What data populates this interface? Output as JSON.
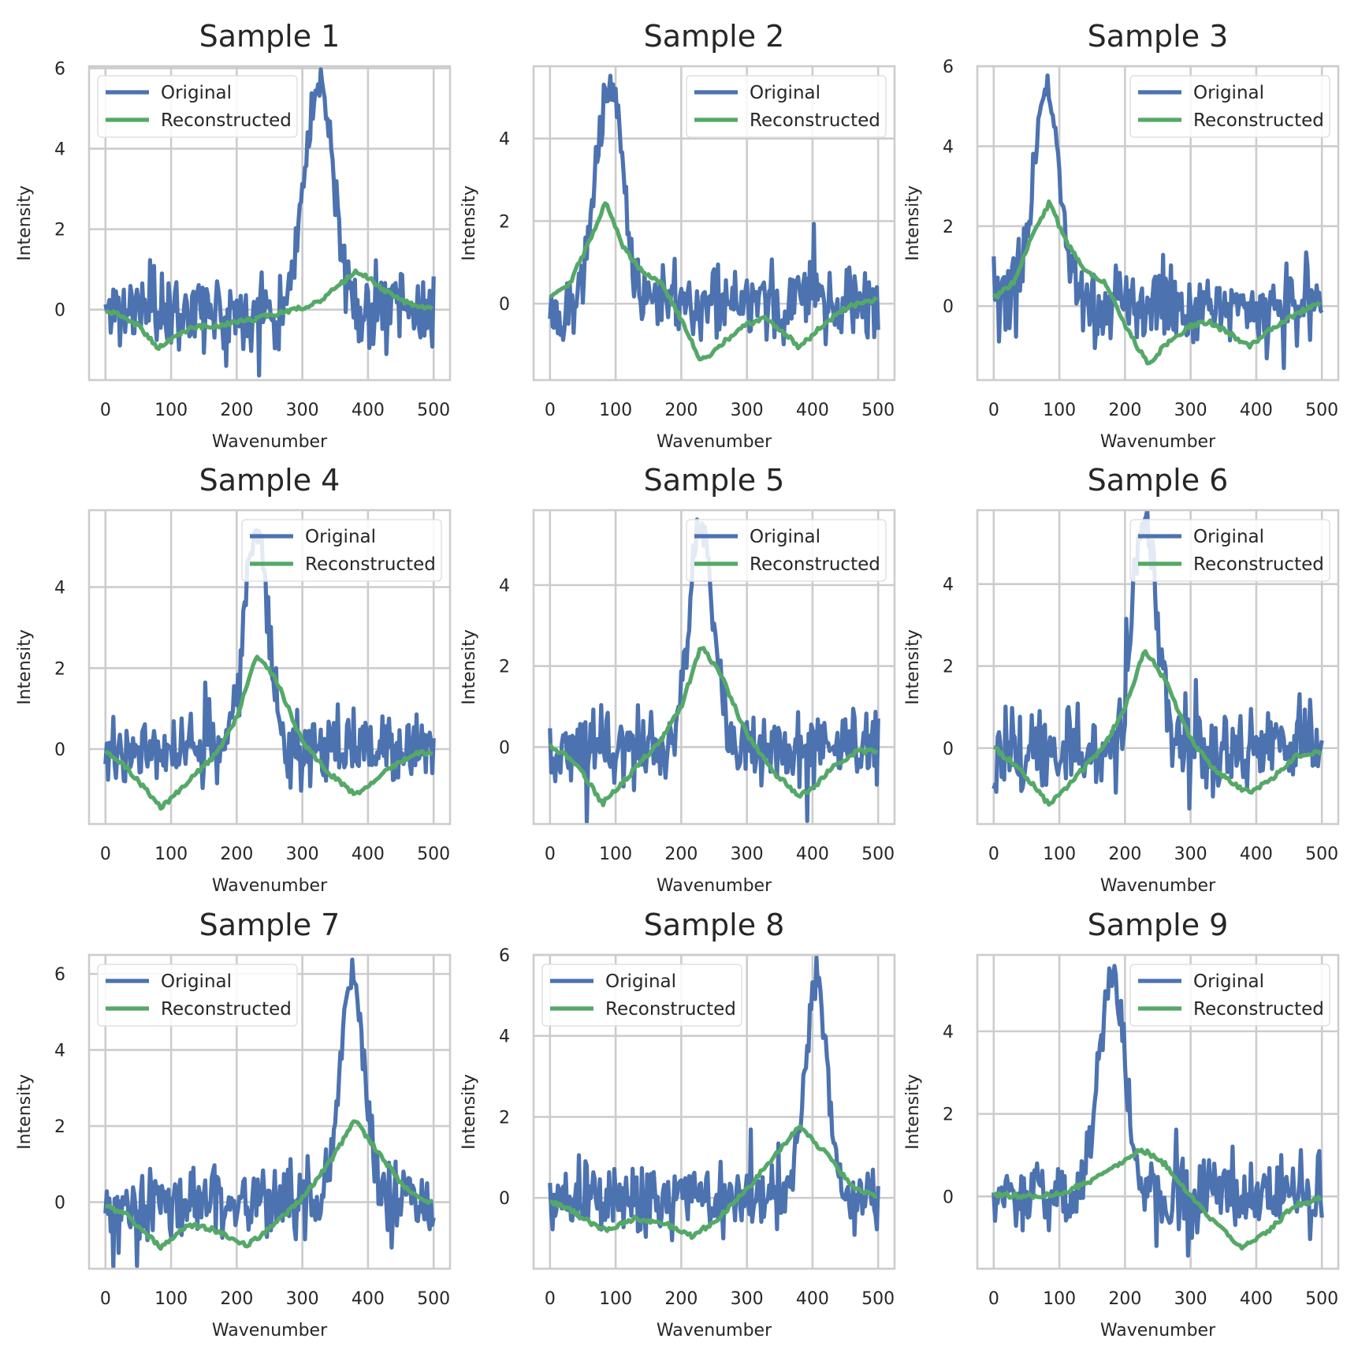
{
  "figure": {
    "rows": 3,
    "cols": 3
  },
  "colors": {
    "original": "#4c72b0",
    "reconstructed": "#55a868",
    "grid": "#cccccc",
    "frame": "#cccccc"
  },
  "chart_data": [
    {
      "type": "line",
      "title": "Sample 1",
      "xlabel": "Wavenumber",
      "ylabel": "Intensity",
      "xlim": [
        -25,
        525
      ],
      "ylim": [
        -1.75,
        6.05
      ],
      "xticks": [
        0,
        100,
        200,
        300,
        400,
        500
      ],
      "yticks": [
        0,
        2,
        4,
        6
      ],
      "legend": "upper-left",
      "series": [
        {
          "name": "Original",
          "peak_center": 325,
          "peak_height": 5.6,
          "peak_width": 22,
          "noise": 0.55,
          "seed": 11
        },
        {
          "name": "Reconstructed",
          "points": [
            [
              0,
              -0.05
            ],
            [
              20,
              -0.1
            ],
            [
              50,
              -0.4
            ],
            [
              80,
              -0.95
            ],
            [
              100,
              -0.75
            ],
            [
              130,
              -0.45
            ],
            [
              170,
              -0.4
            ],
            [
              210,
              -0.3
            ],
            [
              260,
              -0.1
            ],
            [
              300,
              0.05
            ],
            [
              330,
              0.25
            ],
            [
              360,
              0.65
            ],
            [
              380,
              0.95
            ],
            [
              400,
              0.8
            ],
            [
              440,
              0.3
            ],
            [
              470,
              0.1
            ],
            [
              500,
              0.0
            ]
          ]
        }
      ]
    },
    {
      "type": "line",
      "title": "Sample 2",
      "xlabel": "Wavenumber",
      "ylabel": "Intensity",
      "xlim": [
        -25,
        525
      ],
      "ylim": [
        -1.85,
        5.75
      ],
      "xticks": [
        0,
        100,
        200,
        300,
        400,
        500
      ],
      "yticks": [
        0,
        2,
        4
      ],
      "legend": "upper-right",
      "series": [
        {
          "name": "Original",
          "peak_center": 90,
          "peak_height": 5.3,
          "peak_width": 20,
          "noise": 0.55,
          "seed": 22
        },
        {
          "name": "Reconstructed",
          "points": [
            [
              0,
              0.2
            ],
            [
              30,
              0.5
            ],
            [
              60,
              1.5
            ],
            [
              85,
              2.5
            ],
            [
              110,
              1.4
            ],
            [
              140,
              0.8
            ],
            [
              170,
              0.5
            ],
            [
              200,
              -0.4
            ],
            [
              230,
              -1.4
            ],
            [
              260,
              -1.0
            ],
            [
              300,
              -0.5
            ],
            [
              330,
              -0.35
            ],
            [
              370,
              -0.9
            ],
            [
              380,
              -1.05
            ],
            [
              410,
              -0.6
            ],
            [
              450,
              -0.1
            ],
            [
              500,
              0.1
            ]
          ]
        }
      ]
    },
    {
      "type": "line",
      "title": "Sample 3",
      "xlabel": "Wavenumber",
      "ylabel": "Intensity",
      "xlim": [
        -25,
        525
      ],
      "ylim": [
        -1.85,
        6.0
      ],
      "xticks": [
        0,
        100,
        200,
        300,
        400,
        500
      ],
      "yticks": [
        0,
        2,
        4,
        6
      ],
      "legend": "upper-right",
      "series": [
        {
          "name": "Original",
          "peak_center": 80,
          "peak_height": 5.5,
          "peak_width": 20,
          "noise": 0.55,
          "seed": 33
        },
        {
          "name": "Reconstructed",
          "points": [
            [
              0,
              0.2
            ],
            [
              30,
              0.6
            ],
            [
              60,
              1.8
            ],
            [
              85,
              2.6
            ],
            [
              110,
              1.6
            ],
            [
              140,
              0.9
            ],
            [
              170,
              0.6
            ],
            [
              200,
              -0.5
            ],
            [
              235,
              -1.45
            ],
            [
              260,
              -1.0
            ],
            [
              300,
              -0.5
            ],
            [
              330,
              -0.4
            ],
            [
              370,
              -0.8
            ],
            [
              390,
              -1.0
            ],
            [
              420,
              -0.6
            ],
            [
              460,
              -0.2
            ],
            [
              500,
              0.1
            ]
          ]
        }
      ]
    },
    {
      "type": "line",
      "title": "Sample 4",
      "xlabel": "Wavenumber",
      "ylabel": "Intensity",
      "xlim": [
        -25,
        525
      ],
      "ylim": [
        -1.85,
        5.9
      ],
      "xticks": [
        0,
        100,
        200,
        300,
        400,
        500
      ],
      "yticks": [
        0,
        2,
        4
      ],
      "legend": "upper-right",
      "series": [
        {
          "name": "Original",
          "peak_center": 230,
          "peak_height": 5.5,
          "peak_width": 18,
          "noise": 0.55,
          "seed": 44
        },
        {
          "name": "Reconstructed",
          "points": [
            [
              0,
              0.0
            ],
            [
              40,
              -0.6
            ],
            [
              85,
              -1.45
            ],
            [
              120,
              -0.9
            ],
            [
              170,
              -0.1
            ],
            [
              200,
              0.8
            ],
            [
              230,
              2.35
            ],
            [
              260,
              1.7
            ],
            [
              300,
              0.2
            ],
            [
              340,
              -0.6
            ],
            [
              380,
              -1.1
            ],
            [
              400,
              -0.95
            ],
            [
              430,
              -0.5
            ],
            [
              470,
              -0.1
            ],
            [
              500,
              -0.1
            ]
          ]
        }
      ]
    },
    {
      "type": "line",
      "title": "Sample 5",
      "xlabel": "Wavenumber",
      "ylabel": "Intensity",
      "xlim": [
        -25,
        525
      ],
      "ylim": [
        -1.9,
        5.85
      ],
      "xticks": [
        0,
        100,
        200,
        300,
        400,
        500
      ],
      "yticks": [
        0,
        2,
        4
      ],
      "legend": "upper-right",
      "series": [
        {
          "name": "Original",
          "peak_center": 230,
          "peak_height": 5.5,
          "peak_width": 18,
          "noise": 0.55,
          "seed": 55
        },
        {
          "name": "Reconstructed",
          "points": [
            [
              0,
              0.05
            ],
            [
              40,
              -0.4
            ],
            [
              80,
              -1.4
            ],
            [
              120,
              -0.7
            ],
            [
              170,
              0.2
            ],
            [
              200,
              1.0
            ],
            [
              230,
              2.5
            ],
            [
              260,
              1.8
            ],
            [
              300,
              0.3
            ],
            [
              340,
              -0.6
            ],
            [
              380,
              -1.2
            ],
            [
              400,
              -1.05
            ],
            [
              430,
              -0.5
            ],
            [
              470,
              -0.1
            ],
            [
              500,
              -0.1
            ]
          ]
        }
      ]
    },
    {
      "type": "line",
      "title": "Sample 6",
      "xlabel": "Wavenumber",
      "ylabel": "Intensity",
      "xlim": [
        -25,
        525
      ],
      "ylim": [
        -1.85,
        5.8
      ],
      "xticks": [
        0,
        100,
        200,
        300,
        400,
        500
      ],
      "yticks": [
        0,
        2,
        4
      ],
      "legend": "upper-right",
      "series": [
        {
          "name": "Original",
          "peak_center": 230,
          "peak_height": 5.6,
          "peak_width": 18,
          "noise": 0.55,
          "seed": 66
        },
        {
          "name": "Reconstructed",
          "points": [
            [
              0,
              0.0
            ],
            [
              40,
              -0.5
            ],
            [
              85,
              -1.4
            ],
            [
              120,
              -0.8
            ],
            [
              170,
              0.1
            ],
            [
              200,
              1.0
            ],
            [
              230,
              2.4
            ],
            [
              260,
              1.7
            ],
            [
              300,
              0.2
            ],
            [
              340,
              -0.6
            ],
            [
              390,
              -1.1
            ],
            [
              420,
              -0.8
            ],
            [
              460,
              -0.2
            ],
            [
              500,
              -0.1
            ]
          ]
        }
      ]
    },
    {
      "type": "line",
      "title": "Sample 7",
      "xlabel": "Wavenumber",
      "ylabel": "Intensity",
      "xlim": [
        -25,
        525
      ],
      "ylim": [
        -1.75,
        6.5
      ],
      "xticks": [
        0,
        100,
        200,
        300,
        400,
        500
      ],
      "yticks": [
        0,
        2,
        4,
        6
      ],
      "legend": "upper-left",
      "series": [
        {
          "name": "Original",
          "peak_center": 375,
          "peak_height": 5.9,
          "peak_width": 18,
          "noise": 0.55,
          "seed": 77
        },
        {
          "name": "Reconstructed",
          "points": [
            [
              0,
              -0.1
            ],
            [
              30,
              -0.3
            ],
            [
              60,
              -0.8
            ],
            [
              85,
              -1.2
            ],
            [
              110,
              -0.8
            ],
            [
              130,
              -0.6
            ],
            [
              160,
              -0.7
            ],
            [
              200,
              -1.0
            ],
            [
              215,
              -1.15
            ],
            [
              250,
              -0.7
            ],
            [
              300,
              0.1
            ],
            [
              340,
              1.0
            ],
            [
              380,
              2.15
            ],
            [
              420,
              1.2
            ],
            [
              450,
              0.5
            ],
            [
              480,
              0.1
            ],
            [
              500,
              0.0
            ]
          ]
        }
      ]
    },
    {
      "type": "line",
      "title": "Sample 8",
      "xlabel": "Wavenumber",
      "ylabel": "Intensity",
      "xlim": [
        -25,
        525
      ],
      "ylim": [
        -1.75,
        6.0
      ],
      "xticks": [
        0,
        100,
        200,
        300,
        400,
        500
      ],
      "yticks": [
        0,
        2,
        4,
        6
      ],
      "legend": "upper-left",
      "series": [
        {
          "name": "Original",
          "peak_center": 405,
          "peak_height": 5.6,
          "peak_width": 16,
          "noise": 0.55,
          "seed": 88
        },
        {
          "name": "Reconstructed",
          "points": [
            [
              0,
              -0.1
            ],
            [
              30,
              -0.3
            ],
            [
              60,
              -0.6
            ],
            [
              85,
              -0.8
            ],
            [
              130,
              -0.5
            ],
            [
              170,
              -0.6
            ],
            [
              215,
              -0.95
            ],
            [
              250,
              -0.6
            ],
            [
              300,
              0.2
            ],
            [
              340,
              1.0
            ],
            [
              380,
              1.75
            ],
            [
              420,
              1.1
            ],
            [
              460,
              0.3
            ],
            [
              500,
              0.0
            ]
          ]
        }
      ]
    },
    {
      "type": "line",
      "title": "Sample 9",
      "xlabel": "Wavenumber",
      "ylabel": "Intensity",
      "xlim": [
        -25,
        525
      ],
      "ylim": [
        -1.75,
        5.85
      ],
      "xticks": [
        0,
        100,
        200,
        300,
        400,
        500
      ],
      "yticks": [
        0,
        2,
        4
      ],
      "legend": "upper-right",
      "series": [
        {
          "name": "Original",
          "peak_center": 180,
          "peak_height": 5.3,
          "peak_width": 20,
          "noise": 0.55,
          "seed": 99
        },
        {
          "name": "Reconstructed",
          "points": [
            [
              0,
              0.05
            ],
            [
              50,
              0.0
            ],
            [
              100,
              0.05
            ],
            [
              150,
              0.4
            ],
            [
              200,
              0.9
            ],
            [
              225,
              1.15
            ],
            [
              260,
              0.8
            ],
            [
              300,
              0.0
            ],
            [
              340,
              -0.7
            ],
            [
              380,
              -1.25
            ],
            [
              420,
              -0.8
            ],
            [
              460,
              -0.2
            ],
            [
              500,
              -0.05
            ]
          ]
        }
      ]
    }
  ]
}
